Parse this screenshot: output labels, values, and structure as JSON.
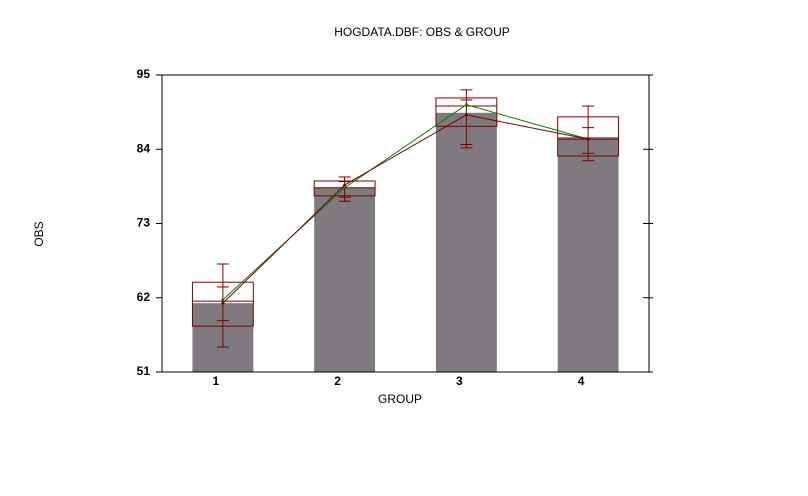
{
  "chart_data": {
    "type": "bar",
    "title": "HOGDATA.DBF: OBS & GROUP",
    "xlabel": "GROUP",
    "ylabel": "OBS",
    "categories": [
      "1",
      "2",
      "3",
      "4"
    ],
    "values": [
      61.2,
      78.3,
      89.4,
      85.8
    ],
    "color": "#7f7a80",
    "box_low": [
      57.8,
      77.1,
      87.4,
      83.0
    ],
    "box_high": [
      64.3,
      79.3,
      91.6,
      88.8
    ],
    "box_mid": [
      61.5,
      78.3,
      90.4,
      85.5
    ],
    "inner_low": [
      58.6,
      76.9,
      84.7,
      83.4
    ],
    "inner_high": [
      63.6,
      79.2,
      91.3,
      87.2
    ],
    "whisker_low": [
      54.7,
      76.3,
      84.2,
      82.3
    ],
    "whisker_high": [
      67.0,
      79.9,
      92.8,
      90.4
    ],
    "box_color": "#800000",
    "mean_line": {
      "color": "#800000",
      "values": [
        61.2,
        78.7,
        89.1,
        85.5
      ]
    },
    "median_line": {
      "color": "#008000",
      "values": [
        61.7,
        78.3,
        90.6,
        85.5
      ]
    },
    "ylim": [
      51,
      95
    ],
    "yticks": [
      51,
      62,
      73,
      84,
      95
    ]
  }
}
